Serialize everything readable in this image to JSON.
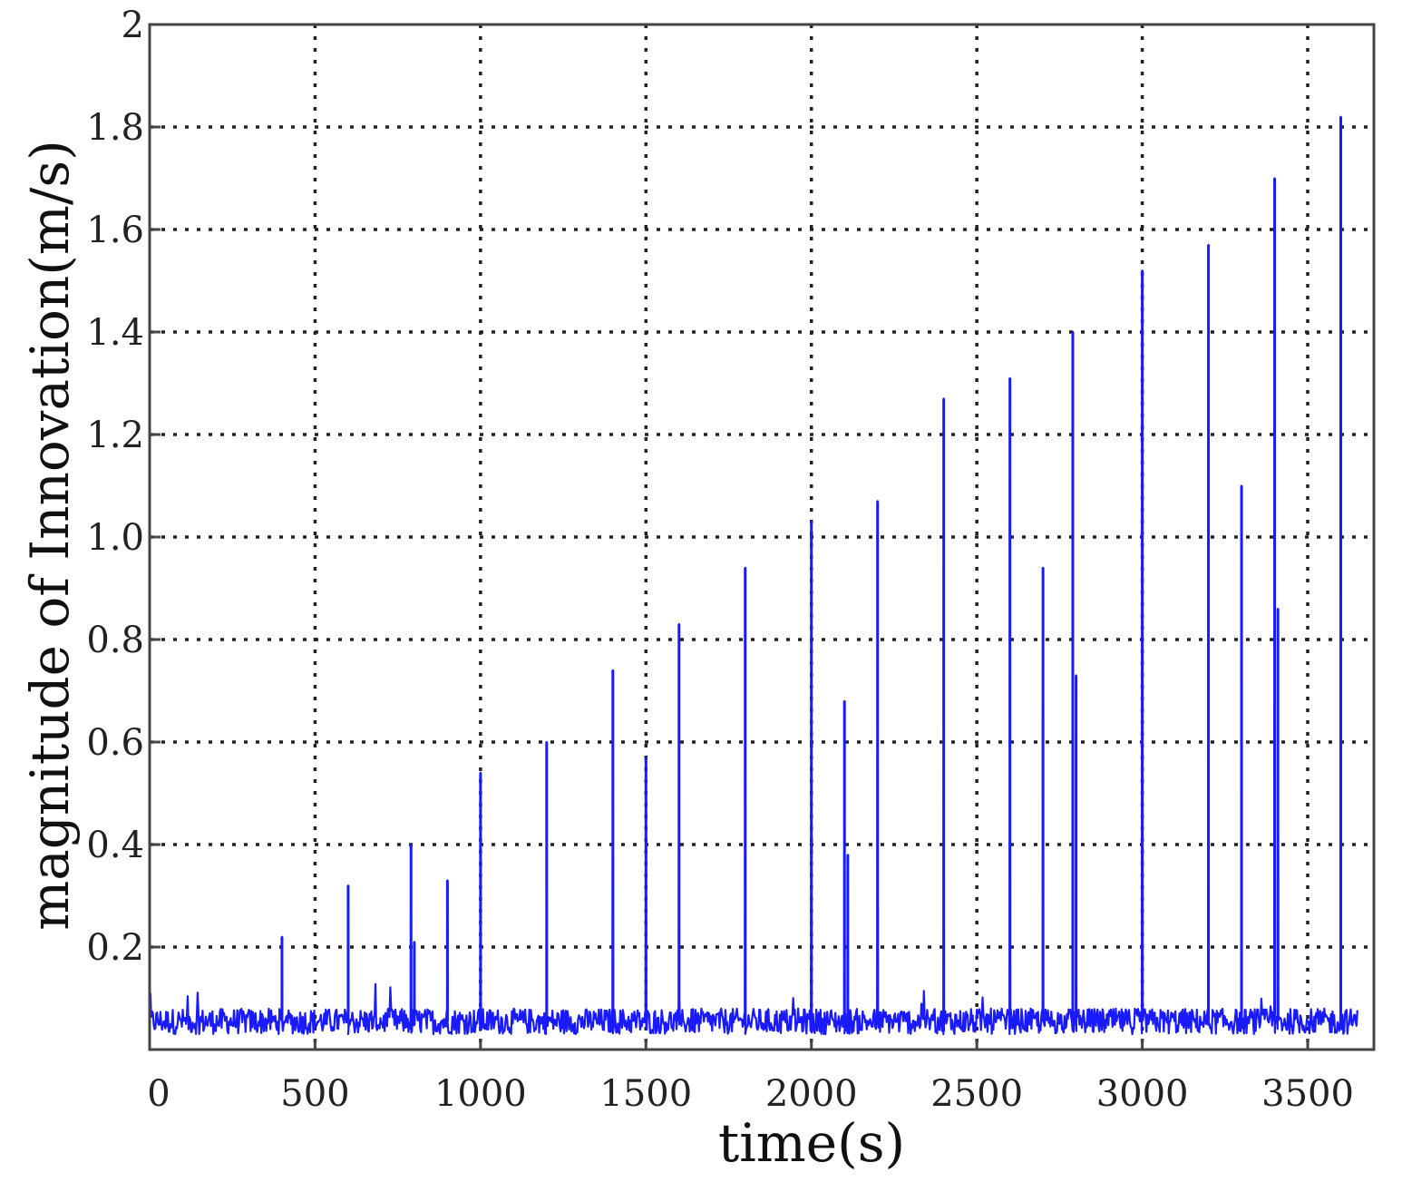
{
  "chart_data": {
    "type": "line",
    "title": "",
    "xlabel": "time(s)",
    "ylabel": "magnitude of Innovation(m/s)",
    "xlim": [
      0,
      3700
    ],
    "ylim": [
      0,
      2
    ],
    "x_ticks": [
      0,
      500,
      1000,
      1500,
      2000,
      2500,
      3000,
      3500
    ],
    "x_tick_labels": [
      "0",
      "500",
      "1000",
      "1500",
      "2000",
      "2500",
      "3000",
      "3500"
    ],
    "y_ticks": [
      0.2,
      0.4,
      0.6,
      0.8,
      1.0,
      1.2,
      1.4,
      1.6,
      1.8,
      2
    ],
    "y_tick_labels": [
      "0.2",
      "0.4",
      "0.6",
      "0.8",
      "1.0",
      "1.2",
      "1.4",
      "1.6",
      "1.8",
      "2"
    ],
    "grid": true,
    "x_range": [
      0,
      3650
    ],
    "baseline": {
      "mean": 0.055,
      "amplitude": 0.025
    },
    "series": [
      {
        "color": "#1a1aff",
        "spikes": [
          {
            "x": 400,
            "y": 0.22
          },
          {
            "x": 600,
            "y": 0.32
          },
          {
            "x": 790,
            "y": 0.4
          },
          {
            "x": 800,
            "y": 0.21
          },
          {
            "x": 900,
            "y": 0.33
          },
          {
            "x": 1000,
            "y": 0.54
          },
          {
            "x": 1200,
            "y": 0.6
          },
          {
            "x": 1400,
            "y": 0.74
          },
          {
            "x": 1500,
            "y": 0.57
          },
          {
            "x": 1600,
            "y": 0.83
          },
          {
            "x": 1800,
            "y": 0.94
          },
          {
            "x": 2000,
            "y": 1.03
          },
          {
            "x": 2100,
            "y": 0.68
          },
          {
            "x": 2110,
            "y": 0.38
          },
          {
            "x": 2200,
            "y": 1.07
          },
          {
            "x": 2400,
            "y": 1.27
          },
          {
            "x": 2600,
            "y": 1.31
          },
          {
            "x": 2700,
            "y": 0.94
          },
          {
            "x": 2790,
            "y": 1.4
          },
          {
            "x": 2800,
            "y": 0.73
          },
          {
            "x": 3000,
            "y": 1.52
          },
          {
            "x": 3200,
            "y": 1.57
          },
          {
            "x": 3300,
            "y": 1.1
          },
          {
            "x": 3400,
            "y": 1.7
          },
          {
            "x": 3410,
            "y": 0.86
          },
          {
            "x": 3600,
            "y": 1.82
          }
        ]
      }
    ]
  }
}
